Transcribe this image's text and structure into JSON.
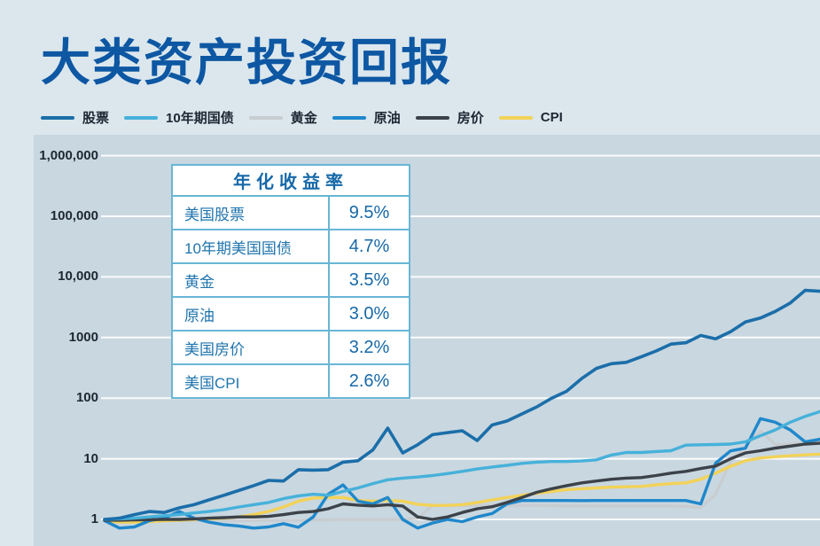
{
  "page": {
    "title": "大类资产投资回报",
    "title_color": "#0d57a3",
    "background": "#dbe7ed",
    "panel_background": "#c9d7e0"
  },
  "legend": [
    {
      "key": "stocks",
      "label": "股票",
      "color": "#1b6ea9"
    },
    {
      "key": "bond-10y",
      "label": "10年期国债",
      "color": "#46b1da"
    },
    {
      "key": "gold",
      "label": "黄金",
      "color": "#c8cdd1"
    },
    {
      "key": "oil",
      "label": "原油",
      "color": "#1f87cb"
    },
    {
      "key": "house",
      "label": "房价",
      "color": "#3c4249"
    },
    {
      "key": "cpi",
      "label": "CPI",
      "color": "#f2d258"
    }
  ],
  "table": {
    "header": "年化收益率",
    "rows": [
      {
        "label": "美国股票",
        "value": "9.5%"
      },
      {
        "label": "10年期美国国债",
        "value": "4.7%"
      },
      {
        "label": "黄金",
        "value": "3.5%"
      },
      {
        "label": "原油",
        "value": "3.0%"
      },
      {
        "label": "美国房价",
        "value": "3.2%"
      },
      {
        "label": "美国CPI",
        "value": "2.6%"
      }
    ]
  },
  "chart_data": {
    "type": "line",
    "y_scale": "log",
    "grid": true,
    "y_ticks": [
      {
        "label": "1,000,000",
        "value": 1000000
      },
      {
        "label": "100,000",
        "value": 100000
      },
      {
        "label": "10,000",
        "value": 10000
      },
      {
        "label": "1000",
        "value": 1000
      },
      {
        "label": "100",
        "value": 100
      },
      {
        "label": "10",
        "value": 10
      },
      {
        "label": "1",
        "value": 1
      }
    ],
    "ylim": [
      0.6,
      1000000
    ],
    "x_tick_labels_visible": false,
    "series": [
      {
        "key": "gold",
        "name": "黄金",
        "color": "#c8cdd1",
        "width": 3.4,
        "values": [
          0.97,
          0.96,
          0.96,
          0.96,
          0.96,
          0.96,
          0.96,
          0.96,
          0.96,
          0.96,
          0.96,
          0.97,
          0.97,
          0.97,
          0.98,
          0.98,
          1.0,
          1.0,
          1.0,
          1.0,
          1.0,
          1.05,
          1.7,
          1.7,
          1.7,
          1.7,
          1.7,
          1.7,
          1.7,
          1.7,
          1.68,
          1.66,
          1.66,
          1.66,
          1.66,
          1.66,
          1.66,
          1.66,
          1.66,
          1.64,
          1.56,
          2.6,
          9,
          16,
          29,
          17,
          17.5,
          18.5,
          20
        ]
      },
      {
        "key": "cpi",
        "name": "CPI",
        "color": "#f2d258",
        "width": 3.4,
        "values": [
          0.95,
          0.9,
          0.9,
          0.92,
          0.95,
          0.97,
          1.0,
          1.02,
          1.05,
          1.1,
          1.2,
          1.35,
          1.6,
          2.0,
          2.25,
          2.3,
          2.3,
          2.05,
          2.0,
          2.05,
          2.0,
          1.78,
          1.7,
          1.7,
          1.75,
          1.9,
          2.1,
          2.3,
          2.5,
          2.7,
          2.9,
          3.1,
          3.2,
          3.3,
          3.4,
          3.45,
          3.5,
          3.7,
          3.9,
          4.0,
          4.6,
          5.8,
          7.5,
          9.3,
          10.3,
          10.8,
          11.2,
          11.6,
          11.9
        ]
      },
      {
        "key": "oil",
        "name": "原油",
        "color": "#1f87cb",
        "width": 3.4,
        "values": [
          0.95,
          0.72,
          0.75,
          0.95,
          1.05,
          1.35,
          1.05,
          0.9,
          0.82,
          0.78,
          0.72,
          0.75,
          0.85,
          0.74,
          1.1,
          2.6,
          3.7,
          2.0,
          1.8,
          2.3,
          1.0,
          0.72,
          0.87,
          1.0,
          0.92,
          1.1,
          1.25,
          1.8,
          2.05,
          2.05,
          2.05,
          2.05,
          2.04,
          2.05,
          2.05,
          2.05,
          2.05,
          2.05,
          2.05,
          2.05,
          1.8,
          8.5,
          13.5,
          15,
          46,
          40,
          30,
          19,
          21
        ]
      },
      {
        "key": "house",
        "name": "房价",
        "color": "#3c4249",
        "width": 3.4,
        "values": [
          0.97,
          0.97,
          0.98,
          0.99,
          1.0,
          1.0,
          1.02,
          1.05,
          1.07,
          1.1,
          1.1,
          1.12,
          1.2,
          1.3,
          1.35,
          1.5,
          1.8,
          1.72,
          1.67,
          1.75,
          1.66,
          1.1,
          1.0,
          1.1,
          1.3,
          1.5,
          1.62,
          1.9,
          2.3,
          2.8,
          3.2,
          3.6,
          4.0,
          4.3,
          4.6,
          4.8,
          4.9,
          5.3,
          5.8,
          6.2,
          6.9,
          7.6,
          10,
          12.5,
          13.6,
          15,
          16.2,
          17.5,
          18
        ]
      },
      {
        "key": "bond-10y",
        "name": "10年期国债",
        "color": "#46b1da",
        "width": 3.4,
        "values": [
          1.0,
          1.02,
          1.05,
          1.1,
          1.15,
          1.2,
          1.28,
          1.35,
          1.45,
          1.6,
          1.75,
          1.9,
          2.2,
          2.45,
          2.6,
          2.5,
          2.9,
          3.3,
          3.9,
          4.5,
          4.8,
          5.0,
          5.3,
          5.7,
          6.2,
          6.8,
          7.3,
          7.8,
          8.4,
          8.8,
          9.0,
          9.0,
          9.2,
          9.6,
          11.5,
          12.7,
          12.7,
          13.2,
          13.6,
          16.8,
          17.0,
          17.2,
          17.5,
          19,
          24,
          30,
          40,
          50,
          60
        ]
      },
      {
        "key": "stocks",
        "name": "股票",
        "color": "#1b6ea9",
        "width": 3.6,
        "values": [
          1.0,
          1.05,
          1.2,
          1.35,
          1.3,
          1.55,
          1.75,
          2.1,
          2.5,
          3.0,
          3.6,
          4.4,
          4.3,
          6.6,
          6.5,
          6.6,
          8.8,
          9.3,
          14,
          32,
          12.5,
          17,
          25,
          27,
          29,
          20,
          36,
          42,
          55,
          72,
          100,
          130,
          210,
          310,
          370,
          390,
          480,
          600,
          780,
          820,
          1080,
          950,
          1250,
          1800,
          2100,
          2700,
          3700,
          6000,
          5800
        ]
      }
    ]
  }
}
